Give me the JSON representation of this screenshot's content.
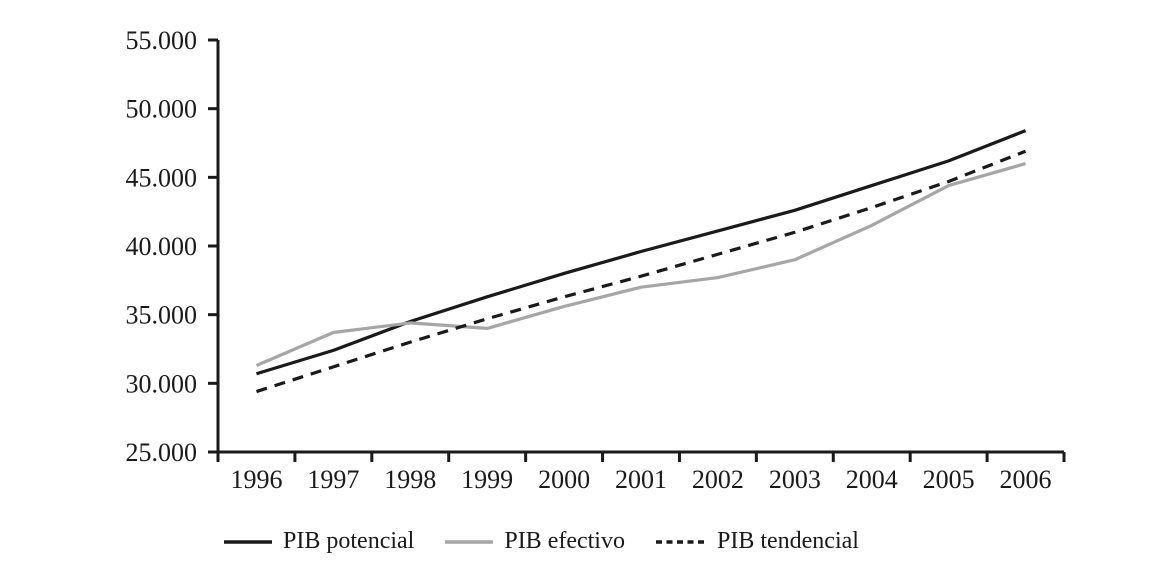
{
  "chart_data": {
    "type": "line",
    "title": "",
    "xlabel": "",
    "ylabel": "",
    "grid": false,
    "legend_position": "bottom",
    "categories": [
      "1996",
      "1997",
      "1998",
      "1999",
      "2000",
      "2001",
      "2002",
      "2003",
      "2004",
      "2005",
      "2006"
    ],
    "y_axis": {
      "min": 25000,
      "max": 55000,
      "tick_step": 5000,
      "tick_labels": [
        "25.000",
        "30.000",
        "35.000",
        "40.000",
        "45.000",
        "50.000",
        "55.000"
      ]
    },
    "series": [
      {
        "name": "PIB potencial",
        "style": "solid",
        "color": "#1a1a1a",
        "values": [
          30700,
          32400,
          34500,
          36300,
          38000,
          39600,
          41100,
          42600,
          44400,
          46200,
          48400
        ]
      },
      {
        "name": "PIB efectivo",
        "style": "solid",
        "color": "#a6a6a6",
        "values": [
          31300,
          33700,
          34400,
          34000,
          35600,
          37000,
          37700,
          39000,
          41500,
          44400,
          46000
        ]
      },
      {
        "name": "PIB tendencial",
        "style": "dashed",
        "color": "#1a1a1a",
        "values": [
          29400,
          31200,
          33000,
          34700,
          36300,
          37800,
          39400,
          41000,
          42800,
          44700,
          46900
        ]
      }
    ],
    "axis_color": "#1a1a1a",
    "text_color": "#1a1a1a"
  }
}
